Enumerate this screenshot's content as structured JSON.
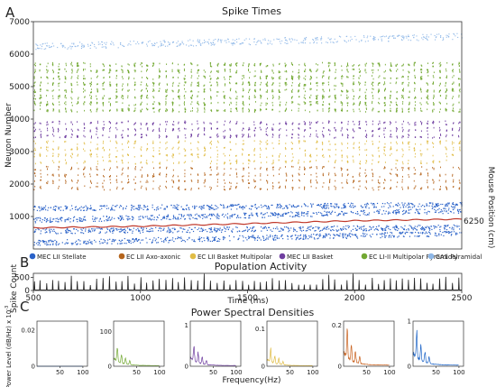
{
  "panels": {
    "a": {
      "letter": "A",
      "title": "Spike Times"
    },
    "b": {
      "letter": "B",
      "title": "Population Activity"
    },
    "c": {
      "letter": "C",
      "title": "Power Spectral Densities"
    }
  },
  "chart_data": [
    {
      "id": "spike-raster",
      "type": "scatter",
      "title": "Spike Times",
      "ylabel": "Neuron Number",
      "ylabel_right": "Mouse Position (cm)",
      "right_annotation": "6250",
      "xlim": [
        500,
        2500
      ],
      "ylim": [
        0,
        7000
      ],
      "yticks": [
        1000,
        2000,
        3000,
        4000,
        5000,
        6000,
        7000
      ],
      "grid": false,
      "legend_placement": "bottom",
      "series": [
        {
          "name": "MEC LII Stellate",
          "color": "#2a62c8",
          "neuron_range": [
            0,
            1400
          ]
        },
        {
          "name": "EC LII Axo-axonic",
          "color": "#b5651d",
          "neuron_range": [
            1800,
            2600
          ]
        },
        {
          "name": "EC LII Basket Multipolar",
          "color": "#e0bc45",
          "neuron_range": [
            2600,
            3400
          ]
        },
        {
          "name": "MEC LII Basket",
          "color": "#6f3ea0",
          "neuron_range": [
            3400,
            4000
          ]
        },
        {
          "name": "EC LI-II Multipolar Pyramidal",
          "color": "#72a832",
          "neuron_range": [
            4200,
            5800
          ]
        },
        {
          "name": "CA1 Pyramidal",
          "color": "#8fb8e8",
          "neuron_range": [
            6250,
            6700
          ]
        }
      ],
      "position_trace": {
        "color": "#c0392b",
        "x": [
          500,
          1000,
          1500,
          2000,
          2500
        ],
        "y": [
          650,
          700,
          780,
          870,
          920
        ]
      }
    },
    {
      "id": "population-activity",
      "type": "line",
      "title": "Population Activity",
      "xlabel": "Time (ms)",
      "ylabel": "Spike Count",
      "xlim": [
        500,
        2500
      ],
      "ylim": [
        0,
        650
      ],
      "xticks": [
        500,
        1000,
        1500,
        2000,
        2500
      ],
      "yticks": [
        0,
        500
      ],
      "series": [
        {
          "color": "#222222",
          "baseline": 20,
          "peak_max": 650
        }
      ]
    },
    {
      "id": "power-spectral-densities",
      "type": "line",
      "title": "Power Spectral Densities",
      "xlabel": "Frequency(Hz)",
      "ylabel": "Power Level (dB/Hz) x 10",
      "ylabel_exponent": "-3",
      "subplots": [
        {
          "color": "#2a62c8",
          "ylim": [
            0,
            0.025
          ],
          "yticks": [
            0,
            0.02
          ],
          "yticklabels": [
            "0",
            "0.02"
          ],
          "xticks": [
            50,
            100
          ],
          "peak": 0.0
        },
        {
          "color": "#72a832",
          "ylim": [
            0,
            130
          ],
          "yticks": [
            0,
            100
          ],
          "yticklabels": [
            "0",
            "100"
          ],
          "xticks": [
            50,
            100
          ],
          "peak": 60
        },
        {
          "color": "#6f3ea0",
          "ylim": [
            0,
            1.1
          ],
          "yticks": [
            0,
            1
          ],
          "yticklabels": [
            "0",
            "1"
          ],
          "xticks": [
            50,
            100
          ],
          "peak": 0.55
        },
        {
          "color": "#e0bc45",
          "ylim": [
            0,
            0.12
          ],
          "yticks": [
            0,
            0.1
          ],
          "yticklabels": [
            "0",
            "0.1"
          ],
          "xticks": [
            50,
            100
          ],
          "peak": 0.05
        },
        {
          "color": "#c9611e",
          "ylim": [
            0,
            0.22
          ],
          "yticks": [
            0,
            0.2
          ],
          "yticklabels": [
            "0",
            "0.2"
          ],
          "xticks": [
            50,
            100
          ],
          "peak": 0.18
        },
        {
          "color": "#1f66c8",
          "ylim": [
            0,
            1.0
          ],
          "yticks": [
            0,
            1
          ],
          "yticklabels": [
            "0",
            "1"
          ],
          "xticks": [
            50,
            100
          ],
          "peak": 0.8
        }
      ]
    }
  ]
}
